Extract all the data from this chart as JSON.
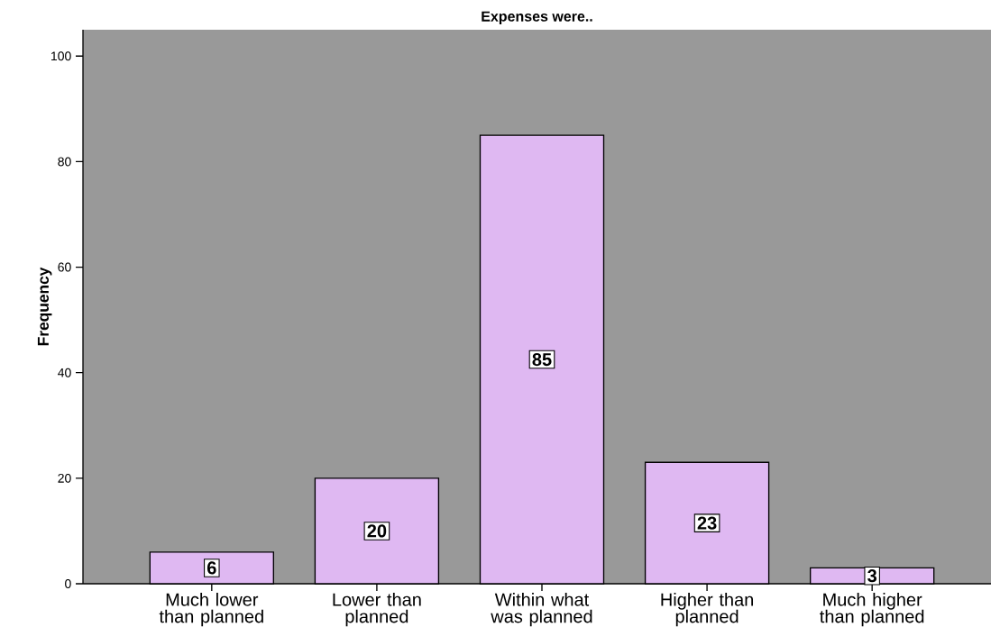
{
  "chart_data": {
    "type": "bar",
    "title": "Expenses were..",
    "ylabel": "Frequency",
    "categories": [
      "Much lower than planned",
      "Lower than planned",
      "Within what was planned",
      "Higher than planned",
      "Much higher than planned"
    ],
    "values": [
      6,
      20,
      85,
      23,
      3
    ],
    "color": "#dfb8f2",
    "ylim": [
      0,
      105
    ],
    "yticks": [
      0,
      20,
      40,
      60,
      80,
      100
    ],
    "grid": false,
    "data_labels": true
  }
}
